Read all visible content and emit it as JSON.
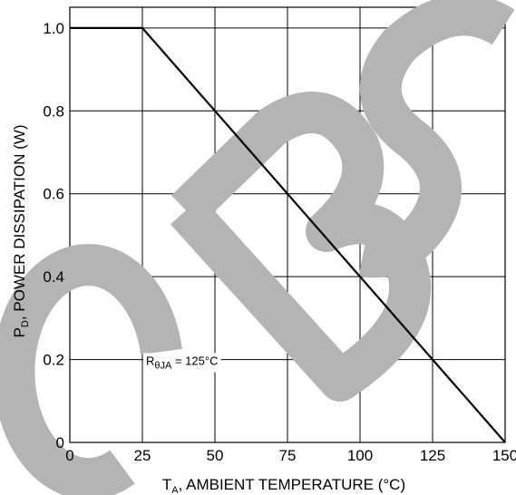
{
  "chart_data": {
    "type": "line",
    "title": "",
    "x_ticks": [
      0,
      25,
      50,
      75,
      100,
      125,
      150
    ],
    "x_tick_labels": [
      "0",
      "25",
      "50",
      "75",
      "100",
      "125",
      "150"
    ],
    "y_ticks": [
      0,
      0.2,
      0.4,
      0.6,
      0.8,
      1.0
    ],
    "y_tick_labels": [
      "0",
      "0.2",
      "0.4",
      "0.6",
      "0.8",
      "1.0"
    ],
    "xlim": [
      0,
      150
    ],
    "ylim": [
      0,
      1.05
    ],
    "grid": true,
    "xlabel": {
      "pre": "T",
      "sub": "A",
      "post": ", AMBIENT TEMPERATURE (°C)"
    },
    "ylabel": {
      "pre": "P",
      "sub": "D",
      "post": ", POWER DISSIPATION (W)"
    },
    "series": [
      {
        "x": [
          0,
          25,
          150
        ],
        "y": [
          1.0,
          1.0,
          0
        ]
      }
    ],
    "annotation": {
      "pre": "R",
      "sub": "θJA",
      "post": " = 125°C",
      "x": 30,
      "y": 0.2
    },
    "watermark": {
      "text": "OBS",
      "color": "#b4b4b4"
    },
    "line_color": "#000000",
    "grid_color": "#000000"
  }
}
